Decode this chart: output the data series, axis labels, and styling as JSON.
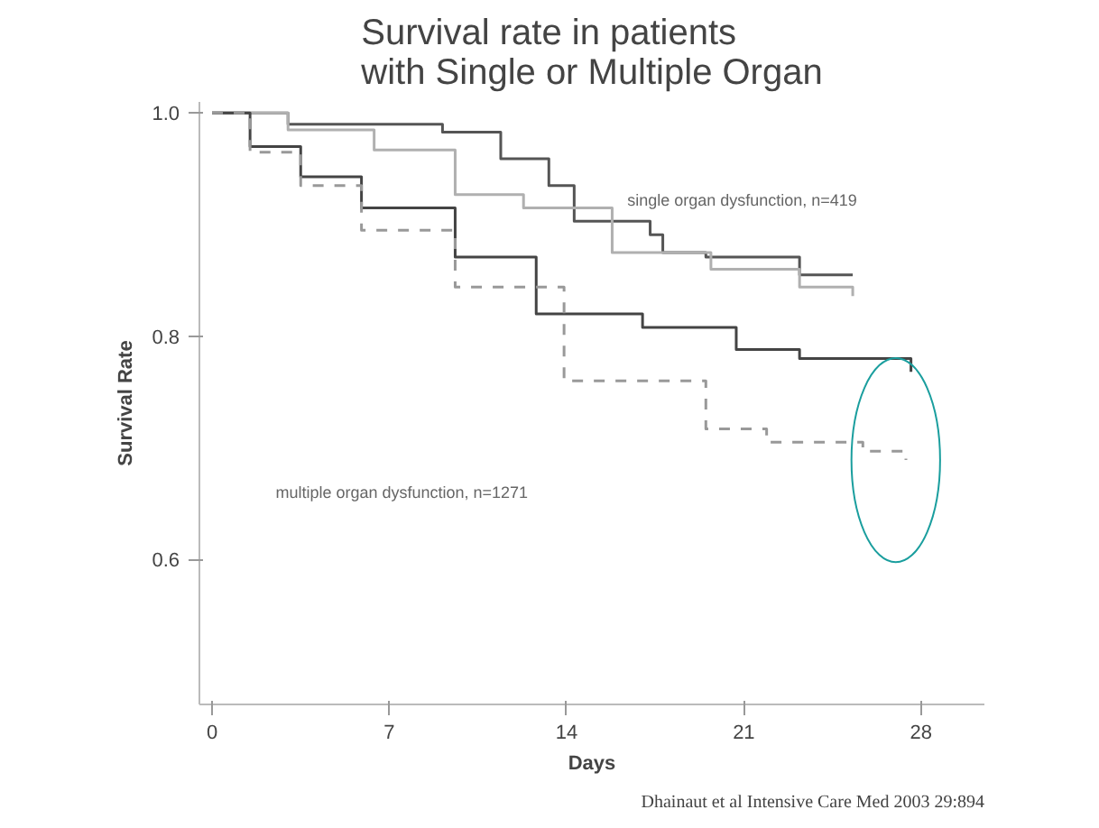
{
  "chart_data": {
    "type": "step",
    "title": "Survival rate in patients\nwith Single or Multiple Organ",
    "xlabel": "Days",
    "ylabel": "Survival Rate",
    "xlim": [
      -0.5,
      30.5
    ],
    "xticks": [
      0,
      7,
      14,
      21,
      28
    ],
    "ylim": [
      0.47,
      1.01
    ],
    "yticks": [
      {
        "value": 1.0,
        "label": "1.0"
      },
      0.8,
      0.6
    ],
    "grid": false,
    "series": [
      {
        "color": "#555555",
        "line_style": "solid",
        "x": [
          0,
          3,
          4.7,
          9.1,
          11.4,
          13.3,
          14.3,
          17.3,
          17.8,
          19.5,
          23.2,
          25.3
        ],
        "values": [
          1.0,
          0.99,
          0.99,
          0.983,
          0.959,
          0.935,
          0.903,
          0.891,
          0.875,
          0.871,
          0.855,
          0.855
        ]
      },
      {
        "color": "#b0b0b0",
        "line_style": "solid",
        "x": [
          0,
          3,
          6.4,
          9.6,
          12.3,
          15.8,
          19.7,
          23.2,
          25.3
        ],
        "values": [
          1.0,
          0.985,
          0.967,
          0.927,
          0.915,
          0.875,
          0.86,
          0.844,
          0.836
        ]
      },
      {
        "color": "#444444",
        "line_style": "solid",
        "x": [
          0,
          1.5,
          3.5,
          5.9,
          9.6,
          12.8,
          17.0,
          20.7,
          23.2,
          27.6
        ],
        "values": [
          1.0,
          0.97,
          0.943,
          0.915,
          0.871,
          0.82,
          0.808,
          0.788,
          0.78,
          0.768
        ]
      },
      {
        "color": "#999999",
        "line_style": "dashed",
        "x": [
          0,
          1.5,
          3.5,
          5.9,
          9.6,
          13.9,
          19.5,
          21.9,
          25.7,
          27.4
        ],
        "values": [
          1.0,
          0.965,
          0.935,
          0.895,
          0.844,
          0.76,
          0.717,
          0.705,
          0.697,
          0.689
        ]
      }
    ],
    "annotations": [
      "single organ dysfunction, n=419",
      "multiple organ dysfunction, n=1271",
      "Dhainaut et al Intensive Care Med 2003 29:894"
    ]
  }
}
